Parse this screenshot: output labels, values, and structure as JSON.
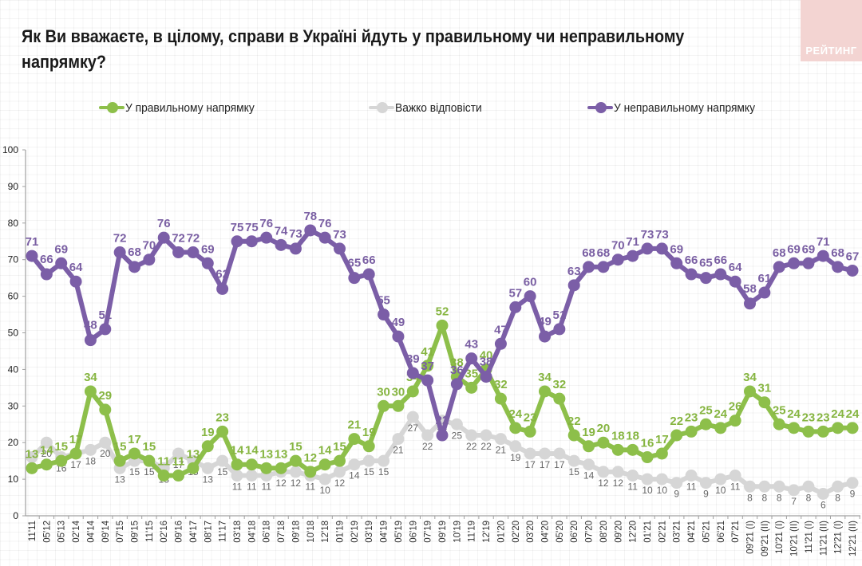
{
  "header": {
    "title": "Як Ви вважаєте, в цілому, справи в Україні йдуть у правильному чи неправильному напрямку?",
    "logo_text": "РЕЙТИНГ"
  },
  "colors": {
    "right": "#8dbf4a",
    "hard": "#d6d6d6",
    "wrong": "#7b5ea7",
    "right_label": "#86b541",
    "hard_label": "#666666",
    "wrong_label": "#7a5fa3"
  },
  "chart_data": {
    "type": "line",
    "title": "Як Ви вважаєте, в цілому, справи в Україні йдуть у правильному чи неправильному напрямку?",
    "xlabel": "",
    "ylabel": "",
    "ylim": [
      0,
      100
    ],
    "yticks": [
      0,
      10,
      20,
      30,
      40,
      50,
      60,
      70,
      80,
      90,
      100
    ],
    "grid": true,
    "legend_position": "top",
    "categories": [
      "11'11",
      "05'12",
      "05'13",
      "02'14",
      "04'14",
      "09'14",
      "07'15",
      "09'15",
      "11'15",
      "02'16",
      "09'16",
      "04'17",
      "08'17",
      "11'17",
      "03'18",
      "04'18",
      "06'18",
      "07'18",
      "09'18",
      "10'18",
      "12'18",
      "01'19",
      "02'19",
      "03'19",
      "04'19",
      "05'19",
      "06'19",
      "07'19",
      "09'19",
      "10'19",
      "11'19",
      "12'19",
      "01'20",
      "02'20",
      "03'20",
      "04'20",
      "05'20",
      "06'20",
      "07'20",
      "08'20",
      "09'20",
      "12'20",
      "01'21",
      "02'21",
      "03'21",
      "04'21",
      "05'21",
      "06'21",
      "07'21",
      "09'21 (I)",
      "09'21 (II)",
      "10'21 (I)",
      "10'21 (II)",
      "11'21 (I)",
      "11'21 (II)",
      "12'21 (I)",
      "12'21 (II)"
    ],
    "series": [
      {
        "key": "right",
        "name": "У правильному напрямку",
        "values": [
          13,
          14,
          15,
          17,
          34,
          29,
          15,
          17,
          15,
          11,
          11,
          13,
          19,
          23,
          14,
          14,
          13,
          13,
          15,
          12,
          14,
          15,
          21,
          19,
          30,
          30,
          34,
          41,
          52,
          38,
          35,
          40,
          32,
          24,
          23,
          34,
          32,
          22,
          19,
          20,
          18,
          18,
          16,
          17,
          22,
          23,
          25,
          24,
          26,
          34,
          31,
          25,
          24,
          23,
          23,
          24,
          24
        ]
      },
      {
        "key": "hard",
        "name": "Важко відповісти",
        "values": [
          16,
          20,
          16,
          17,
          18,
          20,
          13,
          15,
          15,
          13,
          17,
          15,
          13,
          15,
          11,
          11,
          11,
          12,
          12,
          11,
          10,
          12,
          14,
          15,
          15,
          21,
          27,
          22,
          26,
          25,
          22,
          22,
          21,
          19,
          17,
          17,
          17,
          15,
          14,
          12,
          12,
          11,
          10,
          10,
          9,
          11,
          9,
          10,
          11,
          8,
          8,
          8,
          7,
          8,
          6,
          8,
          9
        ]
      },
      {
        "key": "wrong",
        "name": "У неправильному напрямку",
        "values": [
          71,
          66,
          69,
          64,
          48,
          51,
          72,
          68,
          70,
          76,
          72,
          72,
          69,
          62,
          75,
          75,
          76,
          74,
          73,
          78,
          76,
          73,
          65,
          66,
          55,
          49,
          39,
          37,
          22,
          36,
          43,
          38,
          47,
          57,
          60,
          49,
          51,
          63,
          68,
          68,
          70,
          71,
          73,
          73,
          69,
          66,
          65,
          66,
          64,
          58,
          61,
          68,
          69,
          69,
          71,
          68,
          67
        ]
      }
    ]
  }
}
